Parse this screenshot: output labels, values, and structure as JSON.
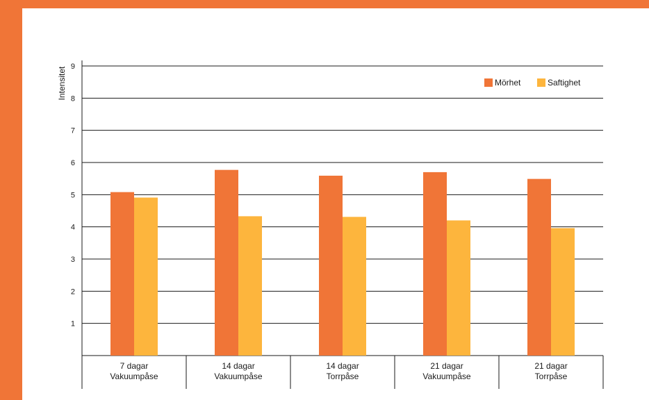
{
  "colors": {
    "frame": "#F07537",
    "series_1": "#F07537",
    "series_2": "#FDB53D",
    "axis": "#1a1a1a",
    "background": "#ffffff"
  },
  "chart_data": {
    "type": "bar",
    "title": "",
    "xlabel": "",
    "ylabel": "Intensitet",
    "ylim": [
      0,
      9
    ],
    "yticks": [
      1,
      2,
      3,
      4,
      5,
      6,
      7,
      8,
      9
    ],
    "grid": true,
    "legend_position": "top-right",
    "categories": [
      [
        "7 dagar",
        "Vakuumpåse"
      ],
      [
        "14 dagar",
        "Vakuumpåse"
      ],
      [
        "14 dagar",
        "Torrpåse"
      ],
      [
        "21 dagar",
        "Vakuumpåse"
      ],
      [
        "21 dagar",
        "Torrpåse"
      ]
    ],
    "series": [
      {
        "name": "Mörhet",
        "values": [
          5.08,
          5.77,
          5.59,
          5.7,
          5.49
        ]
      },
      {
        "name": "Saftighet",
        "values": [
          4.91,
          4.33,
          4.31,
          4.2,
          3.96
        ]
      }
    ]
  }
}
